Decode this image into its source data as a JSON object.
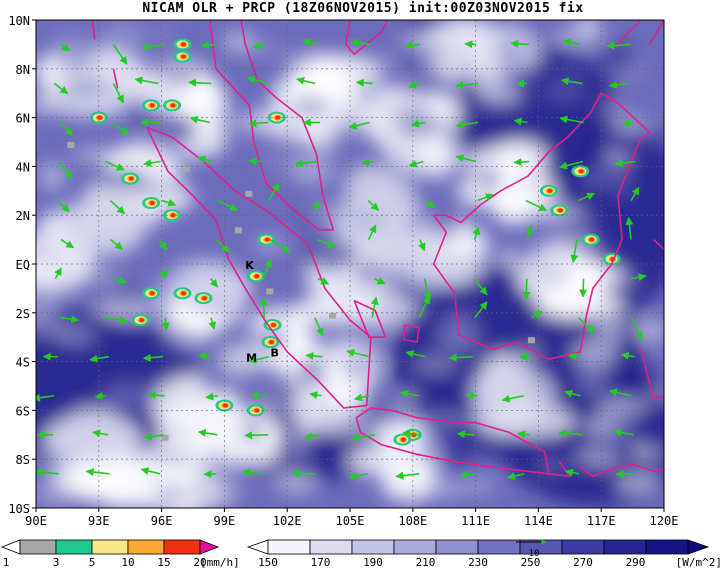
{
  "title": "NICAM OLR + PRCP (18Z06NOV2015) init:00Z03NOV2015 fix",
  "map": {
    "lon_labels": [
      "90E",
      "93E",
      "96E",
      "99E",
      "102E",
      "105E",
      "108E",
      "111E",
      "114E",
      "117E",
      "120E"
    ],
    "lat_labels": [
      "10N",
      "8N",
      "6N",
      "4N",
      "2N",
      "EQ",
      "2S",
      "4S",
      "6S",
      "8S",
      "10S"
    ],
    "stations": [
      {
        "label": "K",
        "lon": 100.2,
        "lat": -0.2
      },
      {
        "label": "M",
        "lon": 100.3,
        "lat": -4.0
      },
      {
        "label": "B",
        "lon": 101.4,
        "lat": -3.8
      }
    ]
  },
  "precip_legend": {
    "labels": [
      "1",
      "3",
      "5",
      "10",
      "15",
      "20"
    ],
    "unit": "[mm/h]",
    "colors": [
      "#ffffff",
      "#a8a8a8",
      "#20c890",
      "#f8e888",
      "#f8a830",
      "#f03010",
      "#e0109a"
    ]
  },
  "olr_legend": {
    "labels": [
      "150",
      "170",
      "190",
      "210",
      "230",
      "250",
      "270",
      "290"
    ],
    "unit": "[W/m^2]",
    "colors": [
      "#f4f4fb",
      "#dcdcf0",
      "#c4c4e6",
      "#aaaadb",
      "#9090cf",
      "#7272c0",
      "#5858b2",
      "#3c3ca2",
      "#242494",
      "#141486"
    ],
    "vector_ref": "10"
  }
}
